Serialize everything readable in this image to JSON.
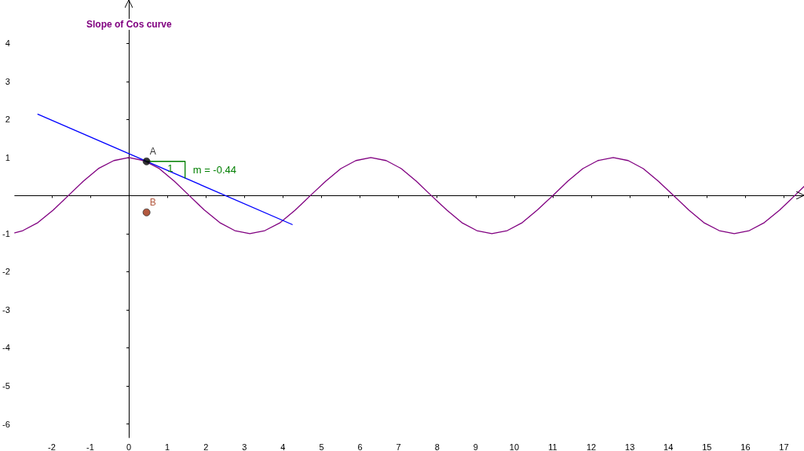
{
  "chart_data": {
    "type": "line",
    "title": "Slope of Cos curve",
    "xlim": [
      -2.96,
      17.52
    ],
    "ylim": [
      -6.36,
      5.14
    ],
    "xticks": [
      -2,
      -1,
      0,
      1,
      2,
      3,
      4,
      5,
      6,
      7,
      8,
      9,
      10,
      11,
      12,
      13,
      14,
      15,
      16,
      17
    ],
    "yticks": [
      -6,
      -5,
      -4,
      -3,
      -2,
      -1,
      1,
      2,
      3,
      4
    ],
    "marker": "none",
    "line_style": "solid",
    "annotations": [
      {
        "text": "1",
        "x": 1.0,
        "y": 0.72
      }
    ],
    "series": [
      {
        "color": "#800080",
        "x": [
          -2.96,
          -2.75,
          -2.36,
          -1.96,
          -1.57,
          -1.18,
          -0.79,
          -0.39,
          0,
          0.39,
          0.79,
          1.18,
          1.57,
          1.96,
          2.36,
          2.75,
          3.14,
          3.53,
          3.93,
          4.32,
          4.71,
          5.11,
          5.5,
          5.89,
          6.28,
          6.68,
          7.07,
          7.46,
          7.85,
          8.25,
          8.64,
          9.03,
          9.42,
          9.82,
          10.21,
          10.6,
          11,
          11.39,
          11.78,
          12.17,
          12.57,
          12.96,
          13.35,
          13.74,
          14.14,
          14.53,
          14.92,
          15.32,
          15.71,
          16.1,
          16.49,
          16.89,
          17.28,
          17.52
        ],
        "values": [
          -0.98,
          -0.92,
          -0.71,
          -0.38,
          0,
          0.38,
          0.71,
          0.92,
          1,
          0.92,
          0.71,
          0.38,
          0,
          -0.38,
          -0.71,
          -0.92,
          -1,
          -0.92,
          -0.71,
          -0.38,
          0,
          0.38,
          0.71,
          0.92,
          1,
          0.92,
          0.71,
          0.38,
          0,
          -0.38,
          -0.71,
          -0.92,
          -1,
          -0.92,
          -0.71,
          -0.38,
          0,
          0.38,
          0.71,
          0.92,
          1,
          0.92,
          0.71,
          0.38,
          0,
          -0.38,
          -0.71,
          -0.92,
          -1,
          -0.92,
          -0.71,
          -0.38,
          0,
          0.24
        ]
      },
      {
        "color": "#0000ff",
        "x": [
          -2.36,
          4.24
        ],
        "values": [
          2.14,
          -0.76
        ]
      },
      {
        "name": "m = -0.44",
        "color": "#007f00",
        "x": [
          0.46,
          1.46,
          1.46
        ],
        "values": [
          0.9,
          0.9,
          0.46
        ]
      },
      {
        "type": "scatter",
        "marker": "circle",
        "color": "#000000",
        "x": [
          0.46
        ],
        "values": [
          0.9
        ],
        "value_labels": [
          "A"
        ]
      },
      {
        "type": "scatter",
        "marker": "circle",
        "color": "#a0300f",
        "x": [
          0.46
        ],
        "values": [
          -0.44
        ],
        "value_labels": [
          "B"
        ]
      }
    ]
  }
}
